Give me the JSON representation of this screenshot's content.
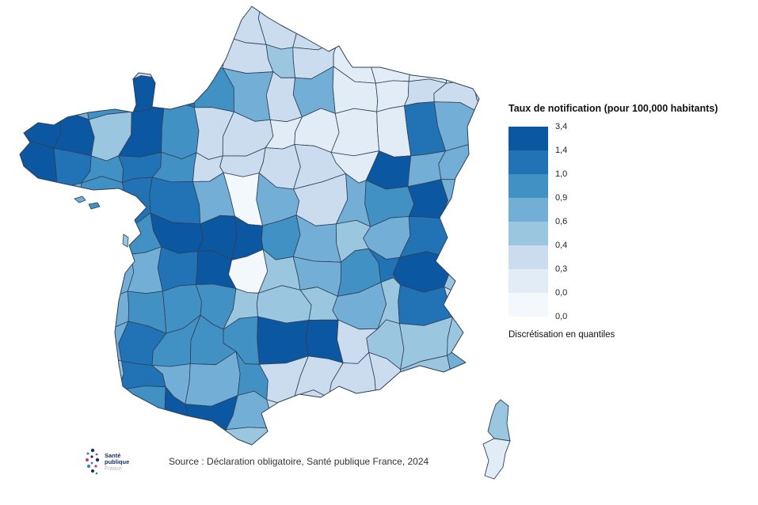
{
  "page": {
    "background": "#ffffff"
  },
  "legend": {
    "title": "Taux de notification (pour 100,000 habitants)",
    "labels": [
      "3,4",
      "1,4",
      "1,0",
      "0,9",
      "0,6",
      "0,4",
      "0,3",
      "0,0",
      "0,0"
    ],
    "note": "Discrétisation en quantiles"
  },
  "palette": [
    "#f3f8fc",
    "#e1ecf6",
    "#cadcee",
    "#9bc6e0",
    "#72aed6",
    "#4191c5",
    "#2173b6",
    "#0c57a1"
  ],
  "chart_data": {
    "type": "choropleth",
    "title": "Taux de notification (pour 100,000 habitants)",
    "quantile_bounds": [
      "3,4",
      "1,4",
      "1,0",
      "0,9",
      "0,6",
      "0,4",
      "0,3",
      "0,0",
      "0,0"
    ],
    "discretization": "Discrétisation en quantiles",
    "n_classes": 8
  },
  "map": {
    "border_color": "#2e4057",
    "grid": [
      [
        2,
        2,
        2,
        2,
        2,
        2,
        2,
        2,
        2,
        1,
        1,
        1,
        1
      ],
      [
        2,
        2,
        2,
        2,
        2,
        2,
        2,
        3,
        2,
        1,
        1,
        1,
        1
      ],
      [
        4,
        4,
        5,
        7,
        6,
        5,
        4,
        2,
        4,
        1,
        1,
        2,
        2
      ],
      [
        7,
        7,
        3,
        7,
        5,
        2,
        2,
        1,
        1,
        1,
        1,
        6,
        4
      ],
      [
        7,
        6,
        5,
        6,
        5,
        2,
        2,
        2,
        2,
        1,
        7,
        4,
        4
      ],
      [
        4,
        4,
        5,
        6,
        6,
        4,
        0,
        4,
        2,
        4,
        5,
        7,
        4
      ],
      [
        4,
        5,
        5,
        5,
        7,
        7,
        7,
        5,
        4,
        3,
        4,
        6,
        1
      ],
      [
        4,
        4,
        4,
        4,
        6,
        7,
        0,
        3,
        4,
        5,
        6,
        7,
        3
      ],
      [
        4,
        4,
        4,
        5,
        5,
        5,
        3,
        3,
        3,
        4,
        3,
        6,
        2
      ],
      [
        4,
        4,
        4,
        6,
        5,
        5,
        5,
        7,
        7,
        2,
        3,
        3,
        3
      ],
      [
        3,
        3,
        3,
        6,
        4,
        4,
        5,
        2,
        2,
        2,
        2,
        3,
        4
      ],
      [
        3,
        3,
        3,
        5,
        7,
        7,
        4,
        2,
        2,
        2,
        2,
        3,
        3
      ],
      [
        2,
        2,
        2,
        3,
        3,
        3,
        3,
        3,
        2,
        2,
        2,
        2,
        2
      ]
    ],
    "corsica_classes": [
      3,
      1
    ],
    "island_classes": [
      4,
      5,
      3
    ]
  },
  "source": {
    "text": "Source : Déclaration obligatoire, Santé publique France, 2024"
  },
  "logo": {
    "line1": "Santé",
    "line2": "publique",
    "line3": "France",
    "navy": "#1b2d6b",
    "blue": "#3a7bbf",
    "magenta": "#c93a72",
    "light": "#a8b6c6"
  }
}
